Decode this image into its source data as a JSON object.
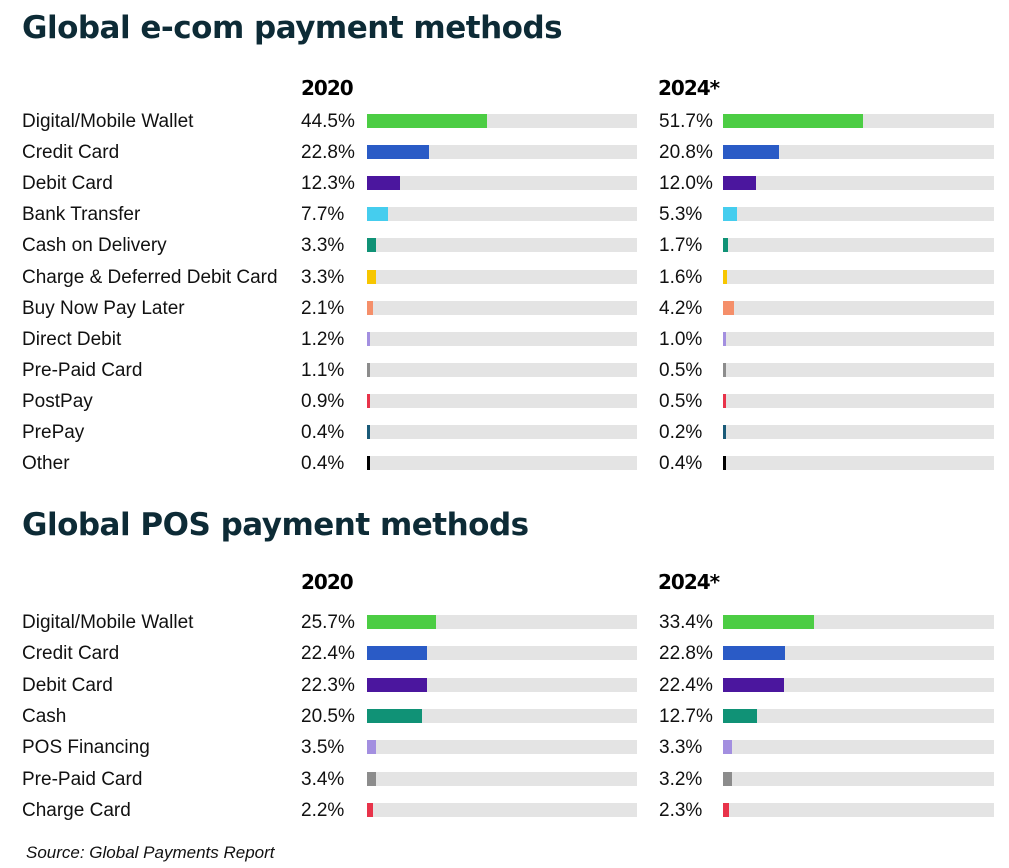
{
  "chart_data": [
    {
      "type": "bar",
      "title": "Global e-com payment methods",
      "series_names": [
        "2020",
        "2024*"
      ],
      "categories": [
        "Digital/Mobile Wallet",
        "Credit Card",
        "Debit Card",
        "Bank Transfer",
        "Cash on Delivery",
        "Charge & Deferred Debit Card",
        "Buy Now Pay Later",
        "Direct Debit",
        "Pre-Paid Card",
        "PostPay",
        "PrePay",
        "Other"
      ],
      "series": [
        {
          "name": "2020",
          "values": [
            44.5,
            22.8,
            12.3,
            7.7,
            3.3,
            3.3,
            2.1,
            1.2,
            1.1,
            0.9,
            0.4,
            0.4
          ]
        },
        {
          "name": "2024*",
          "values": [
            51.7,
            20.8,
            12.0,
            5.3,
            1.7,
            1.6,
            4.2,
            1.0,
            0.5,
            0.5,
            0.2,
            0.4
          ]
        }
      ],
      "colors": [
        "#4ccd44",
        "#2a5bc6",
        "#4b169e",
        "#45cdee",
        "#109276",
        "#f7c600",
        "#f58f6a",
        "#a38fe0",
        "#8c8c8c",
        "#e8334a",
        "#1a5a78",
        "#000000"
      ],
      "xlim": [
        0,
        100
      ]
    },
    {
      "type": "bar",
      "title": "Global POS payment methods",
      "series_names": [
        "2020",
        "2024*"
      ],
      "categories": [
        "Digital/Mobile Wallet",
        "Credit Card",
        "Debit Card",
        "Cash",
        "POS Financing",
        "Pre-Paid Card",
        "Charge Card"
      ],
      "series": [
        {
          "name": "2020",
          "values": [
            25.7,
            22.4,
            22.3,
            20.5,
            3.5,
            3.4,
            2.2
          ]
        },
        {
          "name": "2024*",
          "values": [
            33.4,
            22.8,
            22.4,
            12.7,
            3.3,
            3.2,
            2.3
          ]
        }
      ],
      "colors": [
        "#4ccd44",
        "#2a5bc6",
        "#4b169e",
        "#109276",
        "#a38fe0",
        "#8c8c8c",
        "#e8334a"
      ],
      "xlim": [
        0,
        100
      ]
    }
  ],
  "source": "Source: Global Payments Report"
}
